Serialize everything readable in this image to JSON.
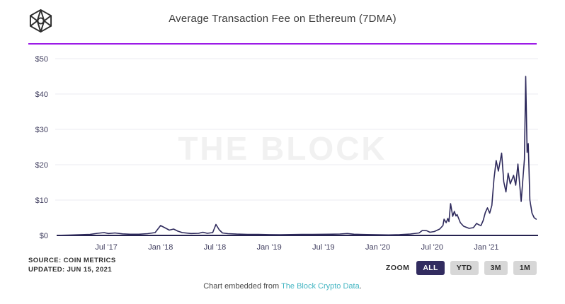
{
  "header": {
    "title": "Average Transaction Fee on Ethereum (7DMA)",
    "accent_color": "#9c1be7",
    "logo_icon": "the-block-cube-logo"
  },
  "watermark": "THE BLOCK",
  "chart_data": {
    "type": "line",
    "title": "Average Transaction Fee on Ethereum (7DMA)",
    "unit": "USD",
    "line_color": "#2e2a5c",
    "axis_color": "#262350",
    "grid_color": "#ebebf1",
    "ylim": [
      0,
      50
    ],
    "grid": "horizontal",
    "y_ticks": [
      {
        "v": 0,
        "label": "$0"
      },
      {
        "v": 10,
        "label": "$10"
      },
      {
        "v": 20,
        "label": "$20"
      },
      {
        "v": 30,
        "label": "$30"
      },
      {
        "v": 40,
        "label": "$40"
      },
      {
        "v": 50,
        "label": "$50"
      }
    ],
    "x_ticks": [
      {
        "t": 2017.5,
        "label": "Jul '17"
      },
      {
        "t": 2018.0,
        "label": "Jan '18"
      },
      {
        "t": 2018.5,
        "label": "Jul '18"
      },
      {
        "t": 2019.0,
        "label": "Jan '19"
      },
      {
        "t": 2019.5,
        "label": "Jul '19"
      },
      {
        "t": 2020.0,
        "label": "Jan '20"
      },
      {
        "t": 2020.5,
        "label": "Jul '20"
      },
      {
        "t": 2021.0,
        "label": "Jan '21"
      }
    ],
    "x_range": [
      2017.05,
      2021.46
    ],
    "points": [
      [
        2017.08,
        0.05
      ],
      [
        2017.15,
        0.1
      ],
      [
        2017.25,
        0.2
      ],
      [
        2017.35,
        0.3
      ],
      [
        2017.42,
        0.6
      ],
      [
        2017.48,
        0.8
      ],
      [
        2017.52,
        0.55
      ],
      [
        2017.58,
        0.7
      ],
      [
        2017.65,
        0.45
      ],
      [
        2017.72,
        0.35
      ],
      [
        2017.8,
        0.35
      ],
      [
        2017.88,
        0.5
      ],
      [
        2017.95,
        0.8
      ],
      [
        2018.0,
        2.8
      ],
      [
        2018.05,
        2.0
      ],
      [
        2018.08,
        1.5
      ],
      [
        2018.12,
        1.8
      ],
      [
        2018.16,
        1.2
      ],
      [
        2018.2,
        0.8
      ],
      [
        2018.28,
        0.55
      ],
      [
        2018.35,
        0.6
      ],
      [
        2018.39,
        0.9
      ],
      [
        2018.43,
        0.6
      ],
      [
        2018.48,
        0.8
      ],
      [
        2018.51,
        3.1
      ],
      [
        2018.54,
        1.6
      ],
      [
        2018.57,
        0.7
      ],
      [
        2018.62,
        0.5
      ],
      [
        2018.7,
        0.38
      ],
      [
        2018.8,
        0.3
      ],
      [
        2018.9,
        0.28
      ],
      [
        2019.0,
        0.22
      ],
      [
        2019.1,
        0.2
      ],
      [
        2019.2,
        0.25
      ],
      [
        2019.3,
        0.28
      ],
      [
        2019.4,
        0.3
      ],
      [
        2019.55,
        0.35
      ],
      [
        2019.65,
        0.4
      ],
      [
        2019.72,
        0.55
      ],
      [
        2019.78,
        0.35
      ],
      [
        2019.9,
        0.25
      ],
      [
        2020.0,
        0.18
      ],
      [
        2020.1,
        0.15
      ],
      [
        2020.2,
        0.22
      ],
      [
        2020.3,
        0.4
      ],
      [
        2020.38,
        0.7
      ],
      [
        2020.41,
        1.4
      ],
      [
        2020.45,
        1.35
      ],
      [
        2020.48,
        0.9
      ],
      [
        2020.52,
        1.1
      ],
      [
        2020.57,
        1.8
      ],
      [
        2020.6,
        2.8
      ],
      [
        2020.61,
        4.6
      ],
      [
        2020.63,
        3.6
      ],
      [
        2020.645,
        4.8
      ],
      [
        2020.655,
        3.9
      ],
      [
        2020.67,
        9.0
      ],
      [
        2020.69,
        5.4
      ],
      [
        2020.705,
        6.8
      ],
      [
        2020.72,
        5.5
      ],
      [
        2020.73,
        5.9
      ],
      [
        2020.76,
        3.6
      ],
      [
        2020.79,
        2.6
      ],
      [
        2020.84,
        2.0
      ],
      [
        2020.88,
        2.2
      ],
      [
        2020.91,
        3.4
      ],
      [
        2020.93,
        3.0
      ],
      [
        2020.95,
        2.8
      ],
      [
        2020.97,
        4.2
      ],
      [
        2020.99,
        6.5
      ],
      [
        2021.01,
        7.8
      ],
      [
        2021.03,
        6.3
      ],
      [
        2021.05,
        8.5
      ],
      [
        2021.07,
        16.0
      ],
      [
        2021.09,
        21.2
      ],
      [
        2021.11,
        18.2
      ],
      [
        2021.14,
        23.3
      ],
      [
        2021.16,
        15.2
      ],
      [
        2021.18,
        12.3
      ],
      [
        2021.2,
        17.6
      ],
      [
        2021.22,
        14.6
      ],
      [
        2021.25,
        17.0
      ],
      [
        2021.27,
        14.2
      ],
      [
        2021.29,
        20.2
      ],
      [
        2021.32,
        9.6
      ],
      [
        2021.35,
        21.6
      ],
      [
        2021.362,
        45.0
      ],
      [
        2021.375,
        23.5
      ],
      [
        2021.385,
        26.0
      ],
      [
        2021.4,
        10.0
      ],
      [
        2021.42,
        6.3
      ],
      [
        2021.44,
        5.0
      ],
      [
        2021.458,
        4.6
      ]
    ]
  },
  "footer": {
    "source_line1": "SOURCE: COIN METRICS",
    "source_line2": "UPDATED: JUN 15, 2021",
    "embed_prefix": "Chart embedded from ",
    "embed_link": "The Block Crypto Data",
    "embed_suffix": "."
  },
  "controls": {
    "zoom_label": "ZOOM",
    "active_bg": "#322c60",
    "inactive_bg": "#d7d7d7",
    "buttons": [
      {
        "label": "ALL",
        "active": true
      },
      {
        "label": "YTD",
        "active": false
      },
      {
        "label": "3M",
        "active": false
      },
      {
        "label": "1M",
        "active": false
      }
    ]
  }
}
